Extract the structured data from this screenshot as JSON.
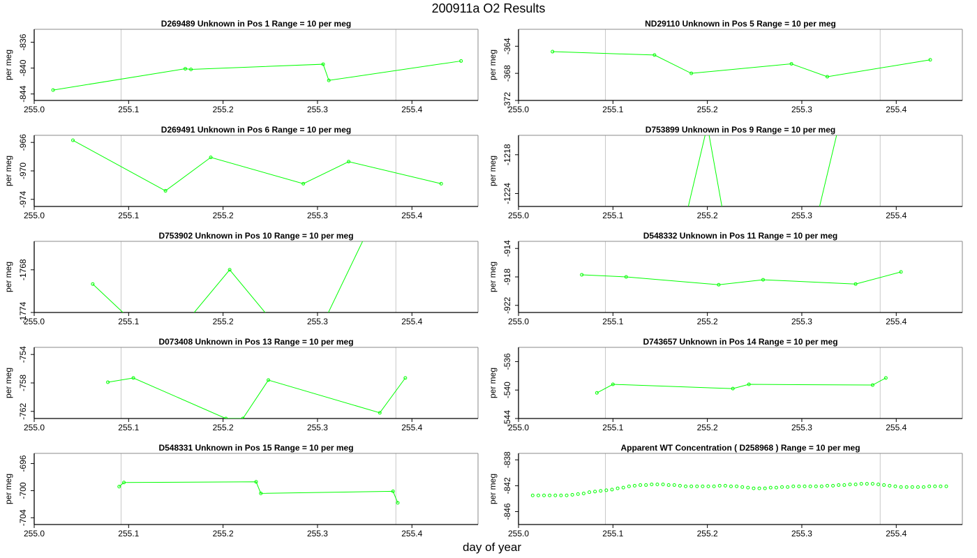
{
  "page": {
    "title": "200911a  O2 Results",
    "xlabel": "day of year"
  },
  "chart_data": [
    {
      "type": "line",
      "title": "D269489    Unknown in Pos 1          Range = 10 per meg",
      "ylabel": "per meg",
      "xlim": [
        255.0,
        255.47
      ],
      "ylim": [
        -845,
        -834
      ],
      "xticks": [
        "255.0",
        "255.1",
        "255.2",
        "255.3",
        "255.4"
      ],
      "yticks": [
        -844,
        -840,
        -836
      ],
      "ytick_labels": [
        "-844",
        "-840",
        "-836"
      ],
      "vlines": [
        255.092,
        255.383
      ],
      "series": [
        {
          "color": "#00ff00",
          "markers": "circle",
          "x": [
            255.02,
            255.16,
            255.166,
            255.306,
            255.312,
            255.452
          ],
          "y": [
            -843.4,
            -840.1,
            -840.2,
            -839.4,
            -841.9,
            -838.9
          ]
        }
      ]
    },
    {
      "type": "line",
      "title": "ND29110    Unknown in Pos 5          Range = 10 per meg",
      "ylabel": "per meg",
      "xlim": [
        255.0,
        255.47
      ],
      "ylim": [
        -372,
        -361.5
      ],
      "xticks": [
        "255.0",
        "255.1",
        "255.2",
        "255.3",
        "255.4"
      ],
      "yticks": [
        -372,
        -368,
        -364
      ],
      "ytick_labels": [
        "-372",
        "-368",
        "-364"
      ],
      "vlines": [
        255.092,
        255.383
      ],
      "series": [
        {
          "color": "#00ff00",
          "markers": "circle",
          "x": [
            255.036,
            255.144,
            255.183,
            255.289,
            255.327,
            255.436
          ],
          "y": [
            -364.8,
            -365.3,
            -368.0,
            -366.6,
            -368.5,
            -366.0
          ]
        }
      ]
    },
    {
      "type": "line",
      "title": "D269491    Unknown in Pos 6          Range = 10 per meg",
      "ylabel": "per meg",
      "xlim": [
        255.0,
        255.47
      ],
      "ylim": [
        -975,
        -965
      ],
      "xticks": [
        "255.0",
        "255.1",
        "255.2",
        "255.3",
        "255.4"
      ],
      "yticks": [
        -974,
        -970,
        -966
      ],
      "ytick_labels": [
        "-974",
        "-970",
        "-966"
      ],
      "vlines": [
        255.092,
        255.383
      ],
      "series": [
        {
          "color": "#00ff00",
          "markers": "circle",
          "x": [
            255.041,
            255.139,
            255.187,
            255.285,
            255.333,
            255.431
          ],
          "y": [
            -965.7,
            -972.8,
            -968.1,
            -971.8,
            -968.7,
            -971.8
          ]
        }
      ]
    },
    {
      "type": "line",
      "title": "D753899    Unknown in Pos 9          Range = 10 per meg",
      "ylabel": "per meg",
      "xlim": [
        255.0,
        255.47
      ],
      "ylim": [
        -1226,
        -1215
      ],
      "xticks": [
        "255.0",
        "255.1",
        "255.2",
        "255.3",
        "255.4"
      ],
      "yticks": [
        -1224,
        -1218
      ],
      "ytick_labels": [
        "-1224",
        "-1218"
      ],
      "vlines": [
        255.092,
        255.383
      ],
      "series": [
        {
          "color": "#00ff00",
          "markers": "none",
          "x": [
            255.179,
            255.2,
            255.216,
            255.318,
            255.345
          ],
          "y": [
            -1226.5,
            -1213.5,
            -1226.5,
            -1226.5,
            -1210.0
          ]
        }
      ]
    },
    {
      "type": "line",
      "title": "D753902    Unknown in Pos 10          Range = 10 per meg",
      "ylabel": "per meg",
      "xlim": [
        255.0,
        255.47
      ],
      "ylim": [
        -1774,
        -1764
      ],
      "xticks": [
        "255.0",
        "255.1",
        "255.2",
        "255.3",
        "255.4"
      ],
      "yticks": [
        -1774,
        -1768
      ],
      "ytick_labels": [
        "-1774",
        "-1768"
      ],
      "vlines": [
        255.092,
        255.383
      ],
      "series": [
        {
          "color": "#00ff00",
          "markers": "circle",
          "x": [
            255.062,
            255.11,
            255.16,
            255.207,
            255.257,
            255.305,
            255.355
          ],
          "y": [
            -1770.0,
            -1776.0,
            -1775.5,
            -1768.0,
            -1776.0,
            -1775.8,
            -1762.0
          ]
        }
      ]
    },
    {
      "type": "line",
      "title": "D548332    Unknown in Pos 11          Range = 10 per meg",
      "ylabel": "per meg",
      "xlim": [
        255.0,
        255.47
      ],
      "ylim": [
        -923,
        -913
      ],
      "xticks": [
        "255.0",
        "255.1",
        "255.2",
        "255.3",
        "255.4"
      ],
      "yticks": [
        -922,
        -918,
        -914
      ],
      "ytick_labels": [
        "-922",
        "-918",
        "-914"
      ],
      "vlines": [
        255.092,
        255.383
      ],
      "series": [
        {
          "color": "#00ff00",
          "markers": "circle",
          "x": [
            255.067,
            255.114,
            255.212,
            255.259,
            255.357,
            255.405
          ],
          "y": [
            -917.7,
            -918.0,
            -919.1,
            -918.4,
            -919.0,
            -917.3
          ]
        }
      ]
    },
    {
      "type": "line",
      "title": "D073408    Unknown in Pos 13          Range = 10 per meg",
      "ylabel": "per meg",
      "xlim": [
        255.0,
        255.47
      ],
      "ylim": [
        -763,
        -753
      ],
      "xticks": [
        "255.0",
        "255.1",
        "255.2",
        "255.3",
        "255.4"
      ],
      "yticks": [
        -762,
        -758,
        -754
      ],
      "ytick_labels": [
        "-762",
        "-758",
        "-754"
      ],
      "vlines": [
        255.092,
        255.383
      ],
      "series": [
        {
          "color": "#00ff00",
          "markers": "circle",
          "x": [
            255.078,
            255.105,
            255.203,
            255.221,
            255.248,
            255.366,
            255.393
          ],
          "y": [
            -757.9,
            -757.3,
            -763.0,
            -763.0,
            -757.6,
            -762.2,
            -757.3
          ]
        }
      ]
    },
    {
      "type": "line",
      "title": "D743657    Unknown in Pos 14          Range = 10 per meg",
      "ylabel": "per meg",
      "xlim": [
        255.0,
        255.47
      ],
      "ylim": [
        -544,
        -534
      ],
      "xticks": [
        "255.0",
        "255.1",
        "255.2",
        "255.3",
        "255.4"
      ],
      "yticks": [
        -544,
        -540,
        -536
      ],
      "ytick_labels": [
        "-544",
        "-540",
        "-536"
      ],
      "vlines": [
        255.092,
        255.383
      ],
      "series": [
        {
          "color": "#00ff00",
          "markers": "circle",
          "x": [
            255.083,
            255.1,
            255.227,
            255.244,
            255.375,
            255.389
          ],
          "y": [
            -540.4,
            -539.2,
            -539.8,
            -539.2,
            -539.3,
            -538.3
          ]
        }
      ]
    },
    {
      "type": "line",
      "title": "D548331    Unknown in Pos 15          Range = 10 per meg",
      "ylabel": "per meg",
      "xlim": [
        255.0,
        255.47
      ],
      "ylim": [
        -705,
        -694.5
      ],
      "xticks": [
        "255.0",
        "255.1",
        "255.2",
        "255.3",
        "255.4"
      ],
      "yticks": [
        -704,
        -700,
        -696
      ],
      "ytick_labels": [
        "-704",
        "-700",
        "-696"
      ],
      "vlines": [
        255.092,
        255.383
      ],
      "series": [
        {
          "color": "#00ff00",
          "markers": "circle",
          "x": [
            255.09,
            255.095,
            255.235,
            255.24,
            255.38,
            255.385
          ],
          "y": [
            -699.4,
            -698.8,
            -698.7,
            -700.4,
            -700.1,
            -701.8
          ]
        }
      ]
    },
    {
      "type": "scatter",
      "title": "Apparent WT Concentration ( D258968 )          Range = 10 per meg",
      "ylabel": "per meg",
      "xlim": [
        255.0,
        255.47
      ],
      "ylim": [
        -848,
        -837
      ],
      "xticks": [
        "255.0",
        "255.1",
        "255.2",
        "255.3",
        "255.4"
      ],
      "yticks": [
        -846,
        -842,
        -838
      ],
      "ytick_labels": [
        "-846",
        "-842",
        "-838"
      ],
      "vlines": [
        255.092,
        255.383
      ],
      "series": [
        {
          "color": "#00ff00",
          "markers": "circle",
          "line": false,
          "x": [
            255.015,
            255.021,
            255.027,
            255.033,
            255.039,
            255.045,
            255.051,
            255.057,
            255.063,
            255.069,
            255.075,
            255.081,
            255.087,
            255.093,
            255.099,
            255.105,
            255.111,
            255.117,
            255.123,
            255.129,
            255.135,
            255.141,
            255.147,
            255.153,
            255.159,
            255.165,
            255.171,
            255.177,
            255.183,
            255.189,
            255.195,
            255.201,
            255.207,
            255.213,
            255.219,
            255.225,
            255.231,
            255.237,
            255.243,
            255.249,
            255.255,
            255.261,
            255.267,
            255.273,
            255.279,
            255.285,
            255.291,
            255.297,
            255.303,
            255.309,
            255.315,
            255.321,
            255.327,
            255.333,
            255.339,
            255.345,
            255.351,
            255.357,
            255.363,
            255.369,
            255.375,
            255.381,
            255.387,
            255.393,
            255.399,
            255.405,
            255.411,
            255.417,
            255.423,
            255.429,
            255.435,
            255.441,
            255.447,
            255.453
          ],
          "y": [
            -843.5,
            -843.5,
            -843.5,
            -843.5,
            -843.5,
            -843.5,
            -843.5,
            -843.4,
            -843.3,
            -843.2,
            -843.0,
            -842.9,
            -842.8,
            -842.7,
            -842.6,
            -842.4,
            -842.3,
            -842.1,
            -842.0,
            -841.9,
            -841.9,
            -841.8,
            -841.8,
            -841.8,
            -841.9,
            -841.9,
            -842.0,
            -842.1,
            -842.1,
            -842.1,
            -842.1,
            -842.1,
            -842.1,
            -842.0,
            -842.0,
            -842.1,
            -842.1,
            -842.2,
            -842.3,
            -842.4,
            -842.4,
            -842.4,
            -842.3,
            -842.3,
            -842.2,
            -842.2,
            -842.1,
            -842.1,
            -842.1,
            -842.1,
            -842.1,
            -842.1,
            -842.0,
            -842.0,
            -841.9,
            -841.9,
            -841.8,
            -841.8,
            -841.7,
            -841.7,
            -841.7,
            -841.8,
            -841.9,
            -842.0,
            -842.1,
            -842.2,
            -842.2,
            -842.2,
            -842.2,
            -842.2,
            -842.1,
            -842.1,
            -842.1,
            -842.1
          ]
        }
      ]
    }
  ]
}
